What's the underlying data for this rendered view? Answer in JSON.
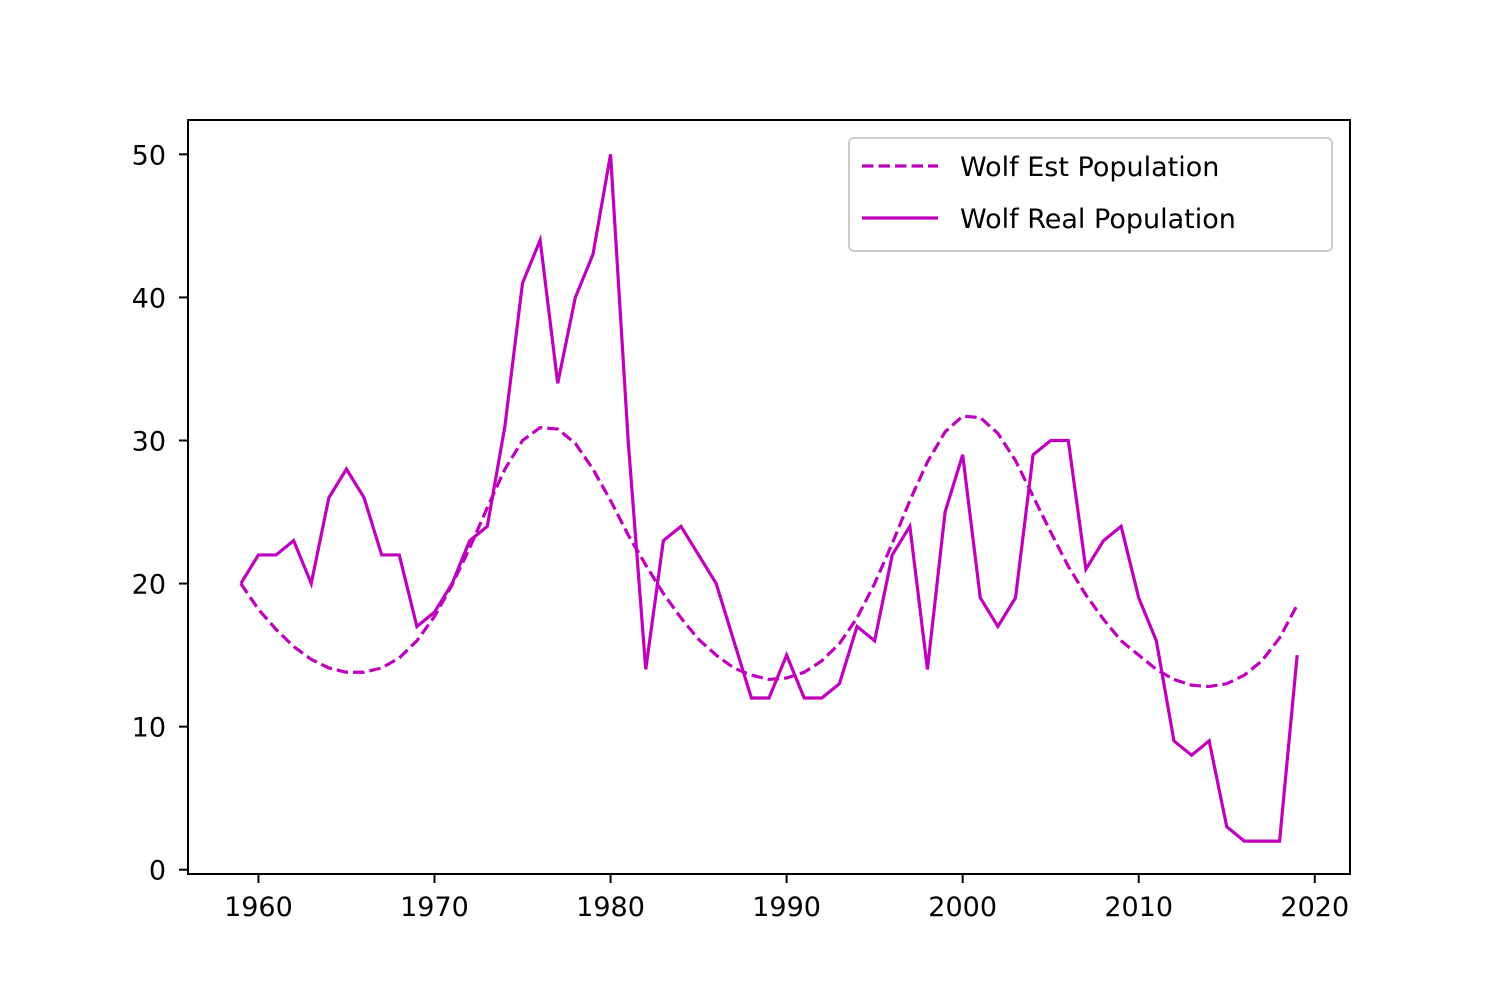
{
  "chart_data": {
    "type": "line",
    "title": "",
    "xlabel": "",
    "ylabel": "",
    "xlim": [
      1956,
      1922
    ],
    "ylim": [
      -0.3,
      52.4
    ],
    "grid": false,
    "legend": {
      "placement": "top-right"
    },
    "x_ticks": [
      1960,
      1970,
      1980,
      1990,
      2000,
      2010,
      2020
    ],
    "y_ticks": [
      0,
      10,
      20,
      30,
      40,
      50
    ],
    "series": [
      {
        "name": "Wolf Est Population",
        "style": "dashed",
        "color": "#bf00bf",
        "x": [
          1959,
          1960,
          1961,
          1962,
          1963,
          1964,
          1965,
          1966,
          1967,
          1968,
          1969,
          1970,
          1971,
          1972,
          1973,
          1974,
          1975,
          1976,
          1977,
          1978,
          1979,
          1980,
          1981,
          1982,
          1983,
          1984,
          1985,
          1986,
          1987,
          1988,
          1989,
          1990,
          1991,
          1992,
          1993,
          1994,
          1995,
          1996,
          1997,
          1998,
          1999,
          2000,
          2001,
          2002,
          2003,
          2004,
          2005,
          2006,
          2007,
          2008,
          2009,
          2010,
          2011,
          2012,
          2013,
          2014,
          2015,
          2016,
          2017,
          2018,
          2019
        ],
        "values": [
          20.0,
          18.2,
          16.8,
          15.6,
          14.7,
          14.1,
          13.8,
          13.8,
          14.1,
          14.8,
          16.0,
          17.7,
          19.9,
          22.5,
          25.3,
          28.0,
          30.0,
          30.9,
          30.8,
          29.8,
          28.0,
          25.8,
          23.4,
          21.3,
          19.3,
          17.6,
          16.1,
          15.0,
          14.1,
          13.6,
          13.3,
          13.4,
          13.8,
          14.6,
          15.8,
          17.6,
          20.0,
          22.8,
          25.8,
          28.5,
          30.6,
          31.7,
          31.6,
          30.5,
          28.6,
          26.1,
          23.6,
          21.2,
          19.2,
          17.5,
          16.0,
          15.0,
          14.0,
          13.3,
          12.9,
          12.8,
          13.0,
          13.6,
          14.6,
          16.2,
          18.5
        ]
      },
      {
        "name": "Wolf Real Population",
        "style": "solid",
        "color": "#bf00bf",
        "x": [
          1959,
          1960,
          1961,
          1962,
          1963,
          1964,
          1965,
          1966,
          1967,
          1968,
          1969,
          1970,
          1971,
          1972,
          1973,
          1974,
          1975,
          1976,
          1977,
          1978,
          1979,
          1980,
          1981,
          1982,
          1983,
          1984,
          1985,
          1986,
          1987,
          1988,
          1989,
          1990,
          1991,
          1992,
          1993,
          1994,
          1995,
          1996,
          1997,
          1998,
          1999,
          2000,
          2001,
          2002,
          2003,
          2004,
          2005,
          2006,
          2007,
          2008,
          2009,
          2010,
          2011,
          2012,
          2013,
          2014,
          2015,
          2016,
          2017,
          2018,
          2019
        ],
        "values": [
          20,
          22,
          22,
          23,
          20,
          26,
          28,
          26,
          22,
          22,
          17,
          18,
          20,
          23,
          24,
          31,
          41,
          44,
          34,
          40,
          43,
          50,
          30,
          14,
          23,
          24,
          22,
          20,
          16,
          12,
          12,
          15,
          12,
          12,
          13,
          17,
          16,
          22,
          24,
          14,
          25,
          29,
          19,
          17,
          19,
          29,
          30,
          30,
          21,
          23,
          24,
          19,
          16,
          9,
          8,
          9,
          3,
          2,
          2,
          2,
          15
        ]
      }
    ]
  }
}
